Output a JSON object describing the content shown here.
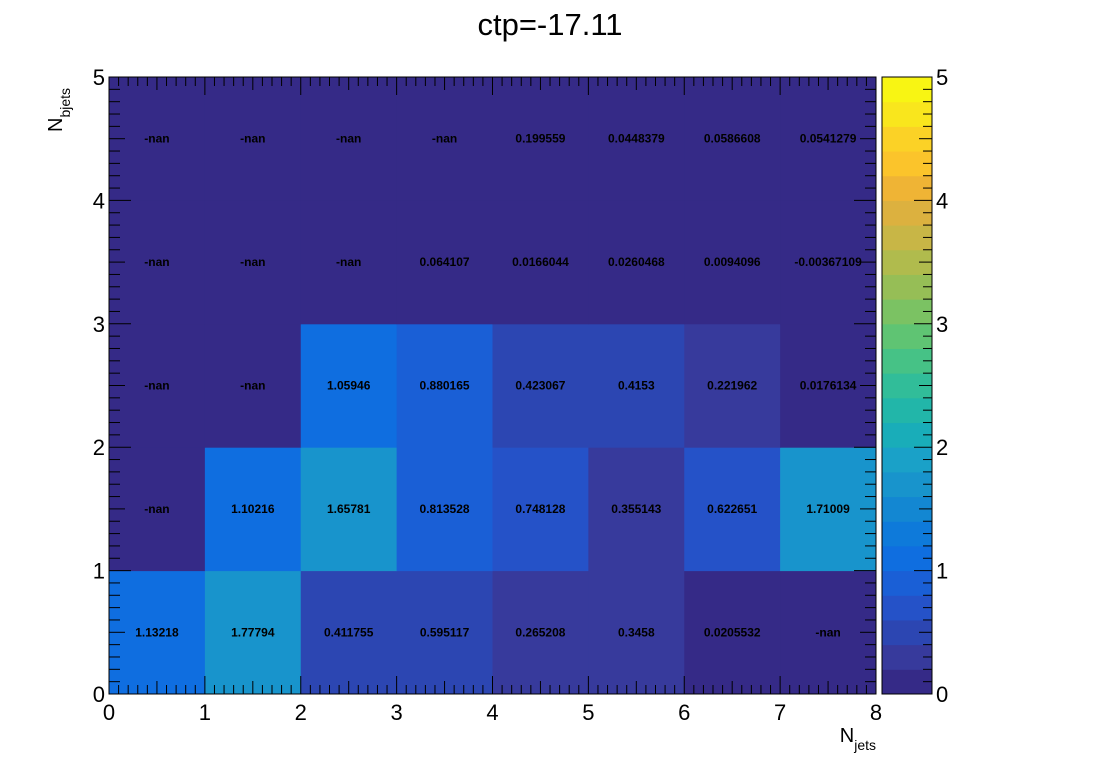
{
  "chart_data": {
    "type": "heatmap",
    "title": "ctp=-17.11",
    "xlabel": {
      "main": "N",
      "sub": "jets"
    },
    "ylabel": {
      "main": "N",
      "sub": "bjets"
    },
    "xlim": [
      0,
      8
    ],
    "ylim": [
      0,
      5
    ],
    "x_ticks": [
      "0",
      "1",
      "2",
      "3",
      "4",
      "5",
      "6",
      "7",
      "8"
    ],
    "y_ticks": [
      "0",
      "1",
      "2",
      "3",
      "4",
      "5"
    ],
    "z_range": [
      0,
      5
    ],
    "colorbar_ticks": [
      "0",
      "1",
      "2",
      "3",
      "4",
      "5"
    ],
    "colormap": [
      "#352a87",
      "#373a9c",
      "#2c46b2",
      "#2552c8",
      "#1a5fd6",
      "#0f6ee0",
      "#0e7ada",
      "#1387d2",
      "#1894cc",
      "#1aa1c8",
      "#19adb9",
      "#22b6a9",
      "#31bd99",
      "#46c286",
      "#5fc473",
      "#7bc263",
      "#96be56",
      "#b0bb4d",
      "#c8b646",
      "#dcb13f",
      "#efb435",
      "#fbc42b",
      "#fbd226",
      "#f9e61d",
      "#f8f513"
    ],
    "rows": [
      {
        "y": "0-1",
        "values": [
          1.13218,
          1.77794,
          0.411755,
          0.595117,
          0.265208,
          0.3458,
          0.0205532,
          null
        ],
        "labels": [
          "1.13218",
          "1.77794",
          "0.411755",
          "0.595117",
          "0.265208",
          "0.3458",
          "0.0205532",
          "-nan"
        ]
      },
      {
        "y": "1-2",
        "values": [
          null,
          1.10216,
          1.65781,
          0.813528,
          0.748128,
          0.355143,
          0.622651,
          1.71009
        ],
        "labels": [
          "-nan",
          "1.10216",
          "1.65781",
          "0.813528",
          "0.748128",
          "0.355143",
          "0.622651",
          "1.71009"
        ]
      },
      {
        "y": "2-3",
        "values": [
          null,
          null,
          1.05946,
          0.880165,
          0.423067,
          0.4153,
          0.221962,
          0.0176134
        ],
        "labels": [
          "-nan",
          "-nan",
          "1.05946",
          "0.880165",
          "0.423067",
          "0.4153",
          "0.221962",
          "0.0176134"
        ]
      },
      {
        "y": "3-4",
        "values": [
          null,
          null,
          null,
          0.064107,
          0.0166044,
          0.0260468,
          0.0094096,
          -0.00367109
        ],
        "labels": [
          "-nan",
          "-nan",
          "-nan",
          "0.064107",
          "0.0166044",
          "0.0260468",
          "0.0094096",
          "-0.00367109"
        ]
      },
      {
        "y": "4-5",
        "values": [
          null,
          null,
          null,
          null,
          0.199559,
          0.0448379,
          0.0586608,
          0.0541279
        ],
        "labels": [
          "-nan",
          "-nan",
          "-nan",
          "-nan",
          "0.199559",
          "0.0448379",
          "0.0586608",
          "0.0541279"
        ]
      }
    ]
  }
}
